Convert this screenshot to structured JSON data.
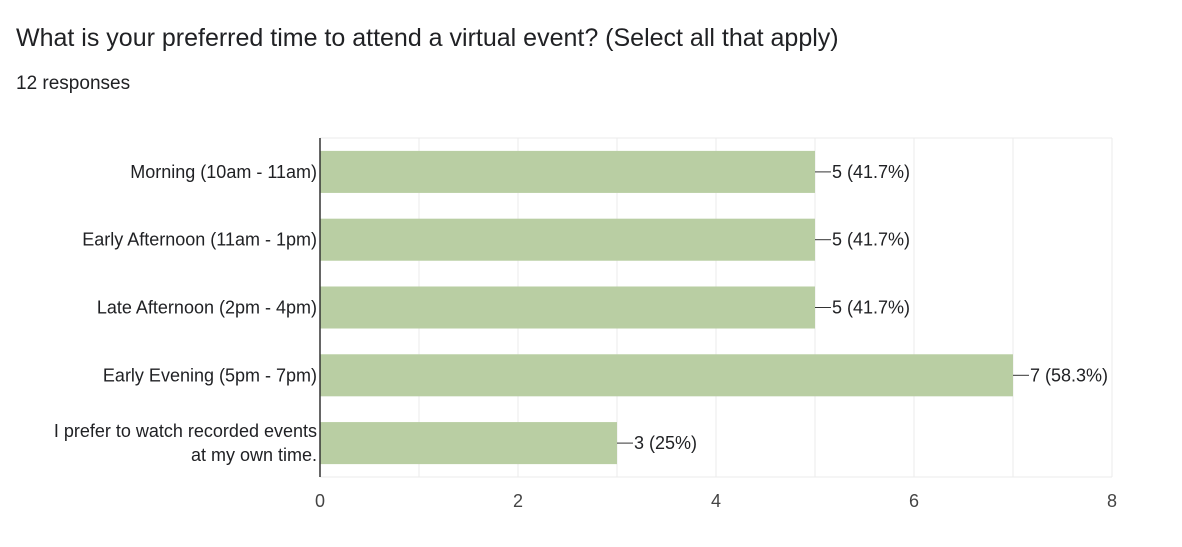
{
  "question": {
    "title": "What is your preferred time to attend a virtual event? (Select all that apply)",
    "responses": "12 responses"
  },
  "colors": {
    "bar": "#b9cea3",
    "grid": "#ebebeb",
    "axis": "#333333",
    "text": "#202124",
    "tick": "#444444"
  },
  "chart_data": {
    "type": "bar",
    "orientation": "horizontal",
    "categories": [
      [
        "Morning (10am - 11am)"
      ],
      [
        "Early Afternoon (11am - 1pm)"
      ],
      [
        "Late Afternoon (2pm - 4pm)"
      ],
      [
        "Early Evening (5pm - 7pm)"
      ],
      [
        "I prefer to watch recorded events",
        "at my own time."
      ]
    ],
    "values": [
      5,
      5,
      5,
      7,
      3
    ],
    "data_labels": [
      "5 (41.7%)",
      "5 (41.7%)",
      "5 (41.7%)",
      "7 (58.3%)",
      "3 (25%)"
    ],
    "xlim": [
      0,
      8
    ],
    "xticks": [
      0,
      2,
      4,
      6,
      8
    ],
    "grid": true
  }
}
